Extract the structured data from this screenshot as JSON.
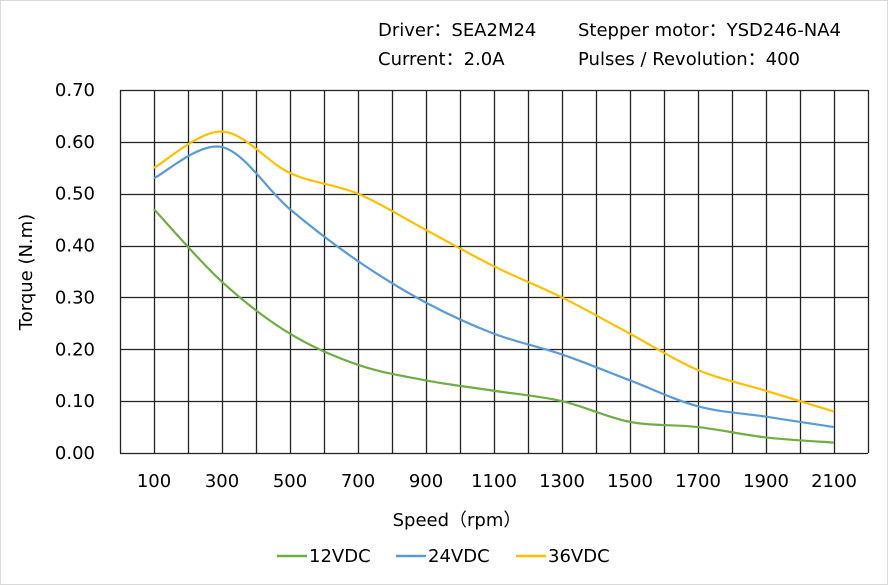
{
  "header": {
    "driver": "Driver：SEA2M24",
    "motor": "Stepper motor：YSD246-NA4",
    "current": "Current：2.0A",
    "pulses": "Pulses / Revolution：400"
  },
  "chart_data": {
    "type": "line",
    "title": "",
    "xlabel": "Speed（rpm）",
    "ylabel": "Torque (N.m)",
    "x": [
      100,
      300,
      500,
      700,
      900,
      1100,
      1300,
      1500,
      1700,
      1900,
      2100
    ],
    "x_tick_labels": [
      "100",
      "300",
      "500",
      "700",
      "900",
      "1100",
      "1300",
      "1500",
      "1700",
      "1900",
      "2100"
    ],
    "y_tick_labels": [
      "0.00",
      "0.10",
      "0.20",
      "0.30",
      "0.40",
      "0.50",
      "0.60",
      "0.70"
    ],
    "xlim": [
      0,
      2200
    ],
    "ylim": [
      0,
      0.7
    ],
    "grid": true,
    "legend": "bottom",
    "series": [
      {
        "name": "12VDC",
        "color": "#70AD47",
        "values": [
          0.47,
          0.33,
          0.23,
          0.17,
          0.14,
          0.12,
          0.1,
          0.06,
          0.05,
          0.03,
          0.02
        ]
      },
      {
        "name": "24VDC",
        "color": "#5B9BD5",
        "values": [
          0.53,
          0.59,
          0.47,
          0.37,
          0.29,
          0.23,
          0.19,
          0.14,
          0.09,
          0.07,
          0.05
        ]
      },
      {
        "name": "36VDC",
        "color": "#FFC000",
        "values": [
          0.55,
          0.62,
          0.54,
          0.5,
          0.43,
          0.36,
          0.3,
          0.23,
          0.16,
          0.12,
          0.08
        ]
      }
    ]
  }
}
